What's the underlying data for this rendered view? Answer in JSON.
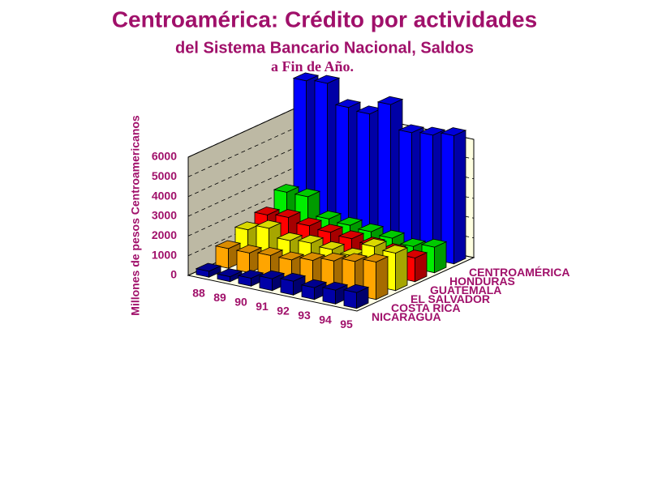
{
  "chart_data": {
    "type": "bar3d",
    "title": "Centroamérica: Crédito por actividades",
    "subtitle": "del Sistema Bancario Nacional, Saldos",
    "subtitle2": "a Fin de Año.",
    "y_label": "Millones de pesos Centroamericanos",
    "categories": [
      "88",
      "89",
      "90",
      "91",
      "92",
      "93",
      "94",
      "95"
    ],
    "series": [
      {
        "name": "NICARAGUA",
        "color": "#0000a8",
        "values": [
          300,
          250,
          400,
          600,
          700,
          600,
          700,
          800
        ]
      },
      {
        "name": "COSTA RICA",
        "color": "#ffa500",
        "values": [
          1000,
          1000,
          1100,
          1100,
          1300,
          1500,
          1700,
          1900
        ]
      },
      {
        "name": "EL SALVADOR",
        "color": "#ffff00",
        "values": [
          1500,
          1800,
          1400,
          1500,
          1400,
          1300,
          2000,
          1900
        ]
      },
      {
        "name": "GUATEMALA",
        "color": "#ff0000",
        "values": [
          1800,
          1900,
          1700,
          1600,
          1500,
          1400,
          1300,
          1200
        ]
      },
      {
        "name": "HONDURAS",
        "color": "#00ee00",
        "values": [
          2500,
          2500,
          1600,
          1500,
          1400,
          1300,
          1100,
          1300
        ]
      },
      {
        "name": "CENTROAMÉRICA",
        "color": "#0000ff",
        "values": [
          7700,
          7800,
          6800,
          6700,
          7400,
          6200,
          6300,
          6500
        ]
      }
    ],
    "ylim": [
      0,
      6000
    ],
    "yticks": [
      0,
      1000,
      2000,
      3000,
      4000,
      5000,
      6000
    ],
    "grid": true
  }
}
